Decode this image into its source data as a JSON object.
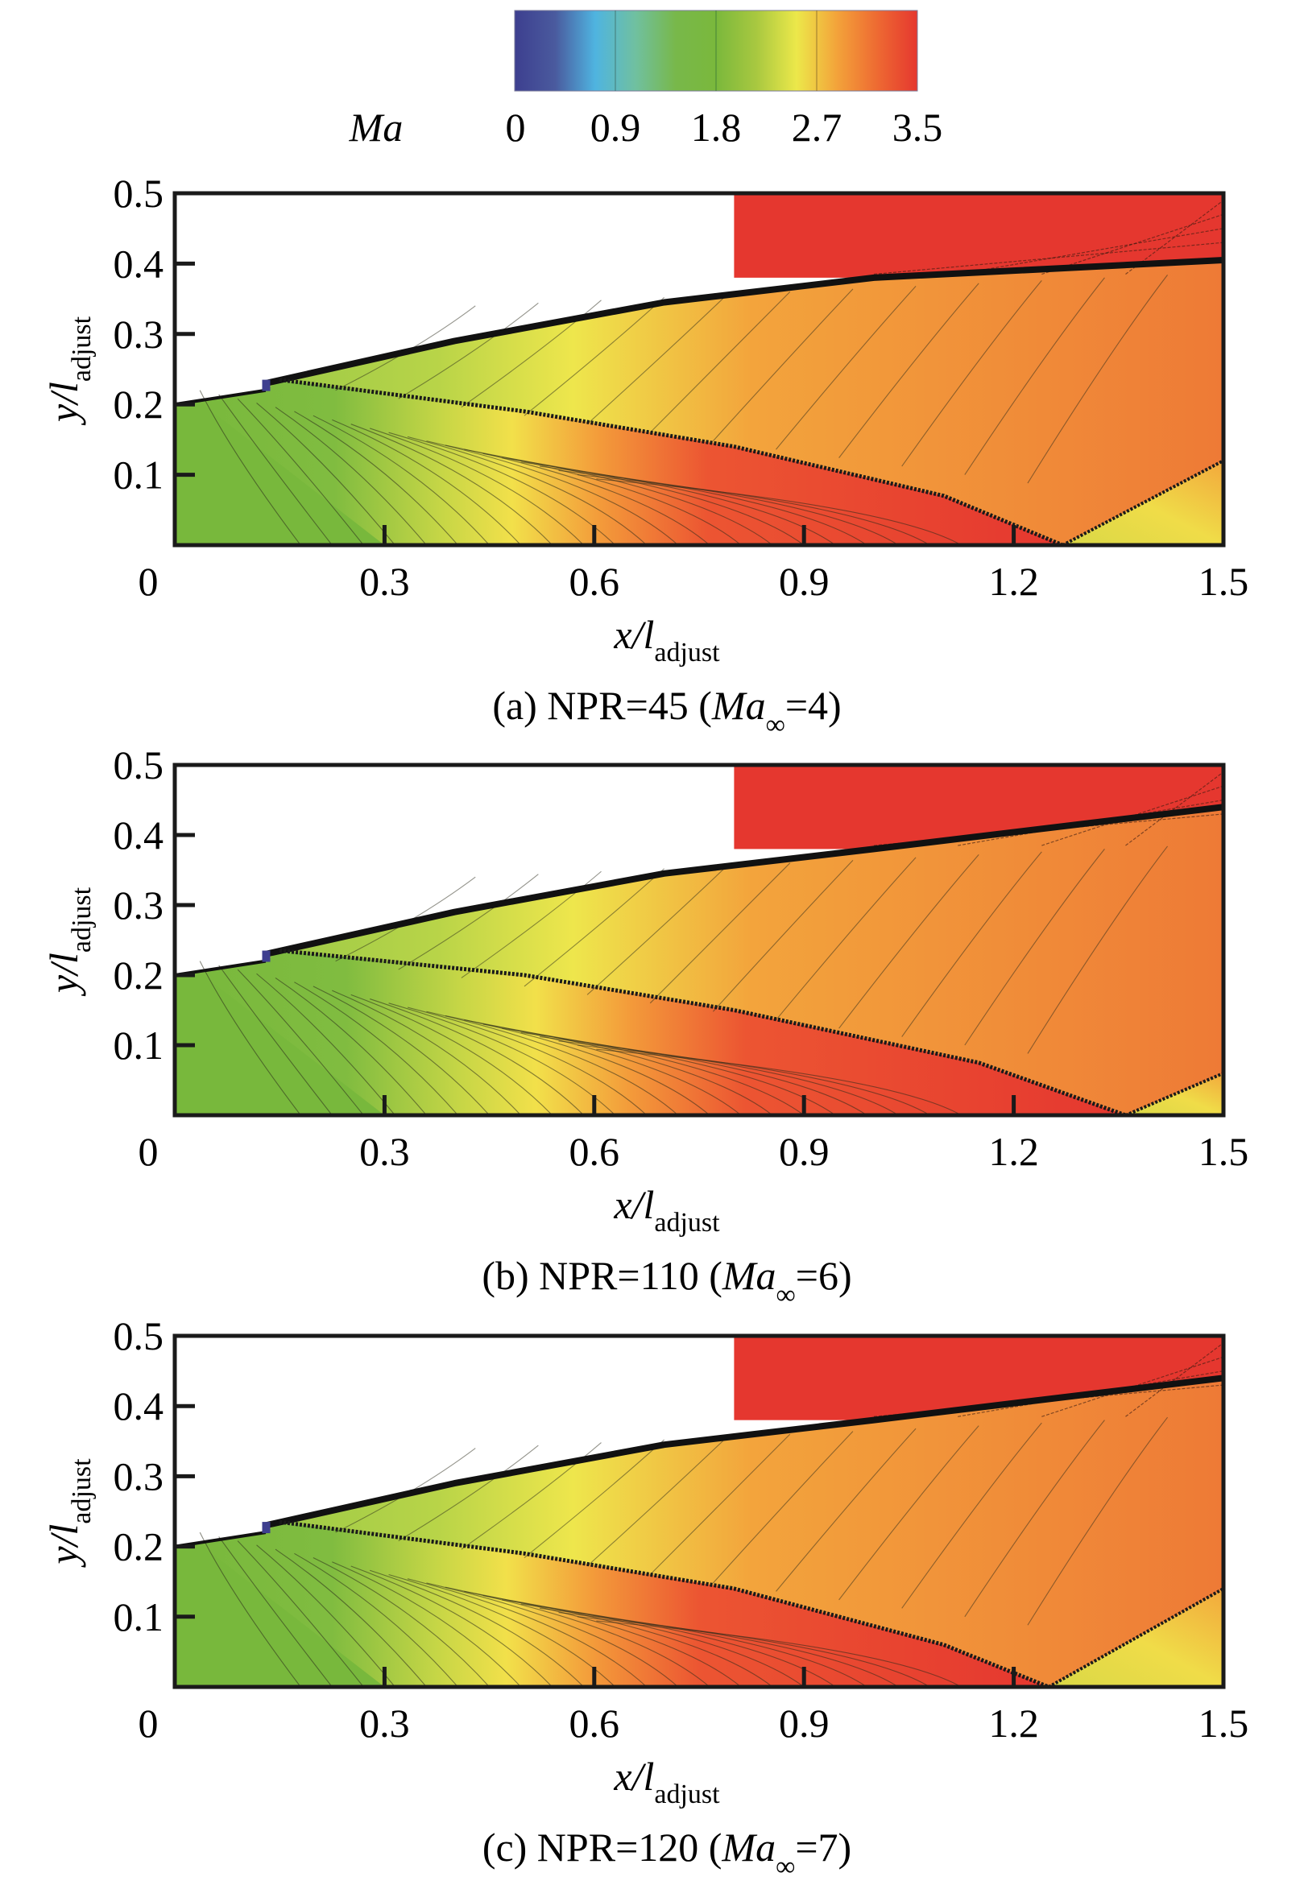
{
  "colorbar": {
    "variable": "Ma",
    "ticks": [
      "0",
      "0.9",
      "1.8",
      "2.7",
      "3.5"
    ],
    "range": [
      0,
      3.5
    ],
    "colors": [
      "#3d3f8f",
      "#4a5a9e",
      "#4fb4e0",
      "#70c0a0",
      "#78b84a",
      "#7ab83c",
      "#a8c840",
      "#ece84a",
      "#f3a33a",
      "#ee6a32",
      "#e5372f"
    ]
  },
  "chart_data": [
    {
      "type": "heatmap",
      "title": "(a) NPR=45 (Ma∞=4)",
      "caption": {
        "prefix": "(a) NPR=45 (",
        "ma": "Ma",
        "sub": "∞",
        "suffix": "=4)"
      },
      "xlabel": {
        "main": "x/l",
        "sub": "adjust"
      },
      "ylabel": {
        "main": "y/l",
        "sub": "adjust"
      },
      "xlim": [
        0,
        1.5
      ],
      "ylim": [
        0,
        0.5
      ],
      "xticks": [
        "0",
        "0.3",
        "0.6",
        "0.9",
        "1.2",
        "1.5"
      ],
      "yticks": [
        "0.1",
        "0.2",
        "0.3",
        "0.4",
        "0.5"
      ],
      "NPR": 45,
      "Ma_inf": 4,
      "features": {
        "nozzle_exit": [
          0.13,
          0.22
        ],
        "freestream_region": {
          "x": [
            0.8,
            1.5
          ],
          "y": [
            0.38,
            0.5
          ],
          "Ma": 3.5
        },
        "jet_boundary": [
          [
            0.13,
            0.23
          ],
          [
            0.4,
            0.29
          ],
          [
            0.7,
            0.345
          ],
          [
            1.0,
            0.38
          ],
          [
            1.5,
            0.405
          ]
        ],
        "internal_shock": [
          [
            0.15,
            0.235
          ],
          [
            0.5,
            0.19
          ],
          [
            0.8,
            0.14
          ],
          [
            1.1,
            0.07
          ],
          [
            1.27,
            0.0
          ]
        ],
        "reflected_shock": [
          [
            1.27,
            0.0
          ],
          [
            1.5,
            0.12
          ]
        ],
        "shock_reflection_x": 1.27
      }
    },
    {
      "type": "heatmap",
      "title": "(b) NPR=110 (Ma∞=6)",
      "caption": {
        "prefix": "(b) NPR=110 (",
        "ma": "Ma",
        "sub": "∞",
        "suffix": "=6)"
      },
      "xlabel": {
        "main": "x/l",
        "sub": "adjust"
      },
      "ylabel": {
        "main": "y/l",
        "sub": "adjust"
      },
      "xlim": [
        0,
        1.5
      ],
      "ylim": [
        0,
        0.5
      ],
      "xticks": [
        "0",
        "0.3",
        "0.6",
        "0.9",
        "1.2",
        "1.5"
      ],
      "yticks": [
        "0.1",
        "0.2",
        "0.3",
        "0.4",
        "0.5"
      ],
      "NPR": 110,
      "Ma_inf": 6,
      "features": {
        "nozzle_exit": [
          0.13,
          0.22
        ],
        "freestream_region": {
          "x": [
            0.8,
            1.5
          ],
          "y": [
            0.38,
            0.5
          ],
          "Ma": 3.5
        },
        "jet_boundary": [
          [
            0.13,
            0.23
          ],
          [
            0.4,
            0.29
          ],
          [
            0.7,
            0.345
          ],
          [
            1.0,
            0.38
          ],
          [
            1.5,
            0.44
          ]
        ],
        "internal_shock": [
          [
            0.15,
            0.235
          ],
          [
            0.5,
            0.2
          ],
          [
            0.8,
            0.15
          ],
          [
            1.15,
            0.075
          ],
          [
            1.36,
            0.0
          ]
        ],
        "reflected_shock": [
          [
            1.36,
            0.0
          ],
          [
            1.5,
            0.06
          ]
        ],
        "shock_reflection_x": 1.36
      }
    },
    {
      "type": "heatmap",
      "title": "(c) NPR=120 (Ma∞=7)",
      "caption": {
        "prefix": "(c) NPR=120 (",
        "ma": "Ma",
        "sub": "∞",
        "suffix": "=7)"
      },
      "xlabel": {
        "main": "x/l",
        "sub": "adjust"
      },
      "ylabel": {
        "main": "y/l",
        "sub": "adjust"
      },
      "xlim": [
        0,
        1.5
      ],
      "ylim": [
        0,
        0.5
      ],
      "xticks": [
        "0",
        "0.3",
        "0.6",
        "0.9",
        "1.2",
        "1.5"
      ],
      "yticks": [
        "0.1",
        "0.2",
        "0.3",
        "0.4",
        "0.5"
      ],
      "NPR": 120,
      "Ma_inf": 7,
      "features": {
        "nozzle_exit": [
          0.13,
          0.22
        ],
        "freestream_region": {
          "x": [
            0.8,
            1.5
          ],
          "y": [
            0.38,
            0.5
          ],
          "Ma": 3.5
        },
        "jet_boundary": [
          [
            0.13,
            0.23
          ],
          [
            0.4,
            0.29
          ],
          [
            0.7,
            0.345
          ],
          [
            1.0,
            0.38
          ],
          [
            1.5,
            0.44
          ]
        ],
        "internal_shock": [
          [
            0.15,
            0.235
          ],
          [
            0.5,
            0.19
          ],
          [
            0.8,
            0.14
          ],
          [
            1.1,
            0.06
          ],
          [
            1.25,
            0.0
          ]
        ],
        "reflected_shock": [
          [
            1.25,
            0.0
          ],
          [
            1.5,
            0.14
          ]
        ],
        "shock_reflection_x": 1.25
      }
    }
  ]
}
